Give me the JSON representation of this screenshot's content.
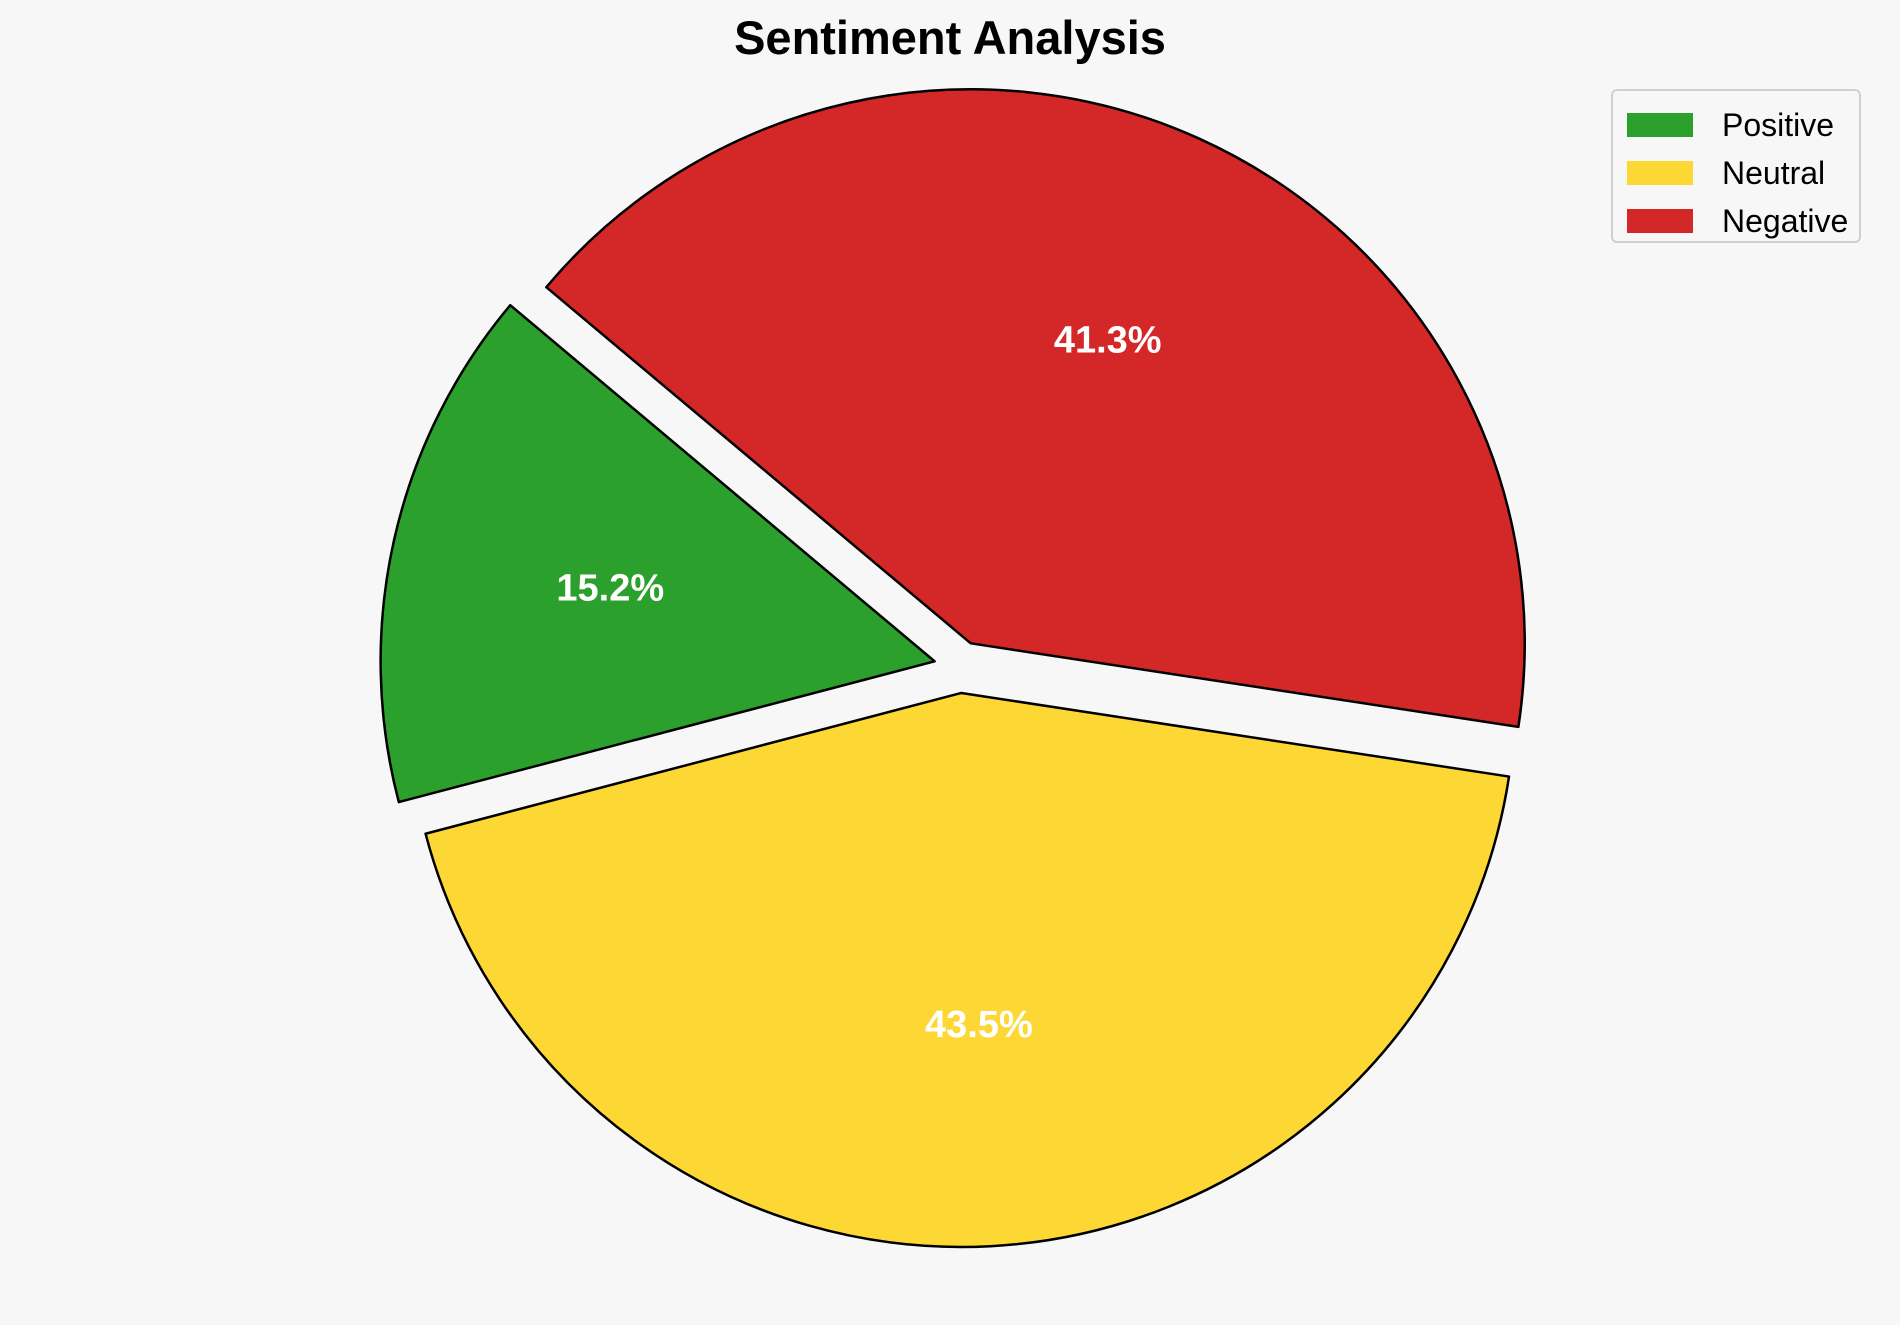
{
  "chart_data": {
    "type": "pie",
    "title": "Sentiment Analysis",
    "slices": [
      {
        "label": "Positive",
        "value": 15.2,
        "display": "15.2%",
        "color": "#2ca02c",
        "exploded": true
      },
      {
        "label": "Neutral",
        "value": 43.5,
        "display": "43.5%",
        "color": "#fdd835",
        "exploded": true
      },
      {
        "label": "Negative",
        "value": 41.3,
        "display": "41.3%",
        "color": "#d32728",
        "exploded": true
      }
    ],
    "start_angle_deg": 140,
    "direction": "counterclockwise",
    "legend": {
      "placement": "top-right",
      "entries": [
        "Positive",
        "Neutral",
        "Negative"
      ]
    },
    "label_color": "#ffffff",
    "edge_color": "#000000",
    "background": "#f7f7f7"
  }
}
